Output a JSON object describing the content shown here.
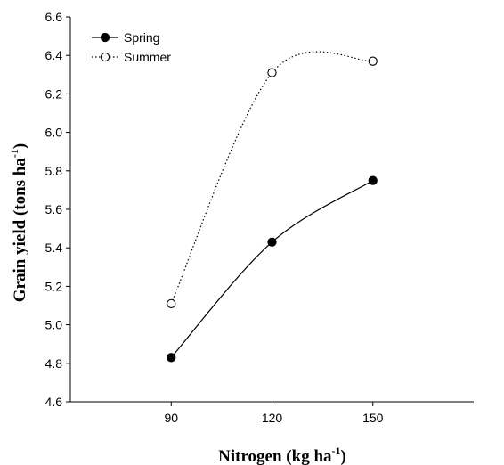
{
  "chart_data": {
    "type": "line",
    "title": "",
    "xlabel": {
      "main": "Nitrogen (kg ha",
      "sup": "-1",
      "close": ")"
    },
    "ylabel": {
      "main": "Grain yield (tons ha",
      "sup": "-1",
      "close": ")"
    },
    "x": [
      90,
      120,
      150
    ],
    "x_ticks": [
      "90",
      "120",
      "150"
    ],
    "xlim": [
      60,
      180
    ],
    "ylim": [
      4.6,
      6.6
    ],
    "y_ticks": [
      "4.6",
      "4.8",
      "5.0",
      "5.2",
      "5.4",
      "5.6",
      "5.8",
      "6.0",
      "6.2",
      "6.4",
      "6.6"
    ],
    "grid": false,
    "legend_position": "top-left",
    "series": [
      {
        "name": "Spring",
        "values": [
          4.83,
          5.43,
          5.75
        ],
        "marker": "filled-circle",
        "line": "solid",
        "color": "#000000"
      },
      {
        "name": "Summer",
        "values": [
          5.11,
          6.31,
          6.37
        ],
        "marker": "open-circle",
        "line": "dotted",
        "color": "#000000"
      }
    ]
  }
}
